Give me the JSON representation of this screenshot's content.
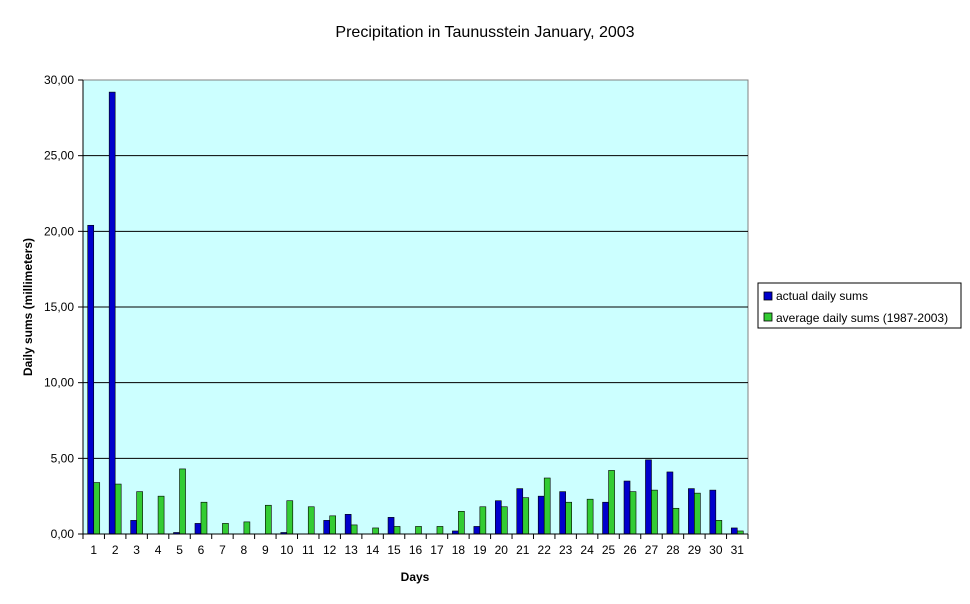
{
  "chart_data": {
    "type": "bar",
    "title": "Precipitation in Taunusstein  January,  2003",
    "xlabel": "Days",
    "ylabel": "Daily sums  (millimeters)",
    "ylim": [
      0,
      30
    ],
    "yticks": [
      "0,00",
      "5,00",
      "10,00",
      "15,00",
      "20,00",
      "25,00",
      "30,00"
    ],
    "grid": true,
    "legend_position": "right",
    "plot_background": "#ccffff",
    "categories": [
      "1",
      "2",
      "3",
      "4",
      "5",
      "6",
      "7",
      "8",
      "9",
      "10",
      "11",
      "12",
      "13",
      "14",
      "15",
      "16",
      "17",
      "18",
      "19",
      "20",
      "21",
      "22",
      "23",
      "24",
      "25",
      "26",
      "27",
      "28",
      "29",
      "30",
      "31"
    ],
    "series": [
      {
        "name": "actual daily sums",
        "color": "#0000cc",
        "values": [
          20.4,
          29.2,
          0.9,
          0.0,
          0.1,
          0.7,
          0.0,
          0.0,
          0.0,
          0.1,
          0.0,
          0.9,
          1.3,
          0.0,
          1.1,
          0.0,
          0.0,
          0.2,
          0.5,
          2.2,
          3.0,
          2.5,
          2.8,
          0.0,
          2.1,
          3.5,
          4.9,
          4.1,
          3.0,
          2.9,
          0.4
        ]
      },
      {
        "name": "average daily sums (1987-2003)",
        "color": "#33cc33",
        "values": [
          3.4,
          3.3,
          2.8,
          2.5,
          4.3,
          2.1,
          0.7,
          0.8,
          1.9,
          2.2,
          1.8,
          1.2,
          0.6,
          0.4,
          0.5,
          0.5,
          0.5,
          1.5,
          1.8,
          1.8,
          2.4,
          3.7,
          2.1,
          2.3,
          4.2,
          2.8,
          2.9,
          1.7,
          2.7,
          0.9,
          0.2
        ]
      }
    ]
  }
}
